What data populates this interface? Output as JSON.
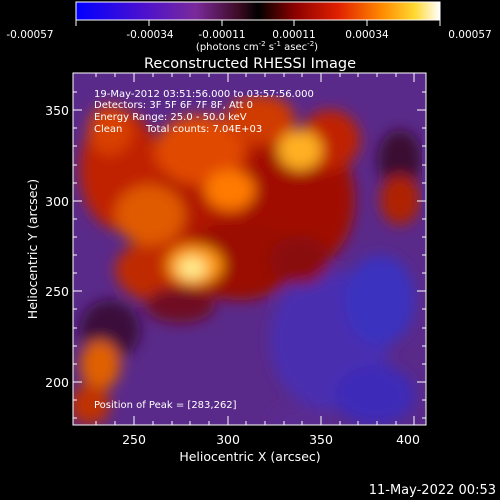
{
  "colorbar": {
    "tick_labels": [
      "-0.00057",
      "-0.00034",
      "-0.00011",
      "0.00011",
      "0.00034",
      "0.00057"
    ],
    "units_base": "(photons cm",
    "units_exp1": "-2",
    "units_mid": " s",
    "units_exp2": "-1",
    "units_mid2": " asec",
    "units_exp3": "-2",
    "units_end": ")"
  },
  "title": "Reconstructed RHESSI Image",
  "info": {
    "line1": "19-May-2012 03:51:56.000 to 03:57:56.000",
    "line2": "Detectors: 3F 5F 6F 7F 8F, Att 0",
    "line3": "Energy Range: 25.0 - 50.0 keV",
    "line4a": "Clean",
    "line4b": "Total counts: 7.04E+03"
  },
  "peak_label": "Position of Peak = [283,262]",
  "x_axis": {
    "label": "Heliocentric X (arcsec)",
    "ticks": [
      "250",
      "300",
      "350",
      "400"
    ]
  },
  "y_axis": {
    "label": "Heliocentric Y (arcsec)",
    "ticks": [
      "200",
      "250",
      "300",
      "350"
    ]
  },
  "timestamp": "11-May-2022 00:53"
}
